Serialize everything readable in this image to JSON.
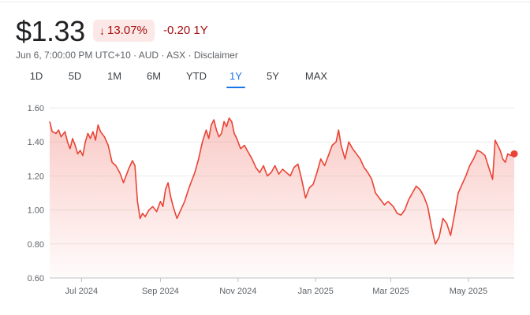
{
  "quote": {
    "price": "$1.33",
    "change_pct": "13.07%",
    "change_abs": "-0.20 1Y",
    "meta": {
      "date": "Jun 6, 7:00:00 PM UTC+10",
      "currency": "AUD",
      "exchange": "ASX",
      "disclaimer": "Disclaimer"
    }
  },
  "icons": {
    "change_arrow": "arrow-down-icon"
  },
  "colors": {
    "negative": "#a50e0e",
    "negative_bg": "#fce8e6",
    "line": "#ea4335",
    "accent": "#1a73e8"
  },
  "range_tabs": [
    {
      "label": "1D"
    },
    {
      "label": "5D"
    },
    {
      "label": "1M"
    },
    {
      "label": "6M"
    },
    {
      "label": "YTD"
    },
    {
      "label": "1Y",
      "active": true
    },
    {
      "label": "5Y"
    },
    {
      "label": "MAX"
    }
  ],
  "chart_data": {
    "type": "area",
    "ylim": [
      0.6,
      1.6
    ],
    "yticks": [
      "1.60",
      "1.40",
      "1.20",
      "1.00",
      "0.80",
      "0.60"
    ],
    "xlim": [
      "2024-06-06",
      "2025-06-06"
    ],
    "xticks": [
      {
        "date": "2024-07-01",
        "label": "Jul 2024"
      },
      {
        "date": "2024-09-01",
        "label": "Sep 2024"
      },
      {
        "date": "2024-11-01",
        "label": "Nov 2024"
      },
      {
        "date": "2025-01-01",
        "label": "Jan 2025"
      },
      {
        "date": "2025-03-01",
        "label": "Mar 2025"
      },
      {
        "date": "2025-05-01",
        "label": "May 2025"
      }
    ],
    "grid": true,
    "series": [
      {
        "points": [
          [
            "2024-06-06",
            1.52
          ],
          [
            "2024-06-08",
            1.46
          ],
          [
            "2024-06-11",
            1.45
          ],
          [
            "2024-06-13",
            1.47
          ],
          [
            "2024-06-15",
            1.43
          ],
          [
            "2024-06-18",
            1.46
          ],
          [
            "2024-06-20",
            1.4
          ],
          [
            "2024-06-22",
            1.36
          ],
          [
            "2024-06-24",
            1.42
          ],
          [
            "2024-06-26",
            1.38
          ],
          [
            "2024-06-28",
            1.33
          ],
          [
            "2024-06-30",
            1.35
          ],
          [
            "2024-07-02",
            1.32
          ],
          [
            "2024-07-04",
            1.4
          ],
          [
            "2024-07-06",
            1.45
          ],
          [
            "2024-07-08",
            1.42
          ],
          [
            "2024-07-10",
            1.46
          ],
          [
            "2024-07-12",
            1.41
          ],
          [
            "2024-07-14",
            1.5
          ],
          [
            "2024-07-16",
            1.46
          ],
          [
            "2024-07-19",
            1.43
          ],
          [
            "2024-07-22",
            1.38
          ],
          [
            "2024-07-25",
            1.28
          ],
          [
            "2024-07-28",
            1.26
          ],
          [
            "2024-07-31",
            1.22
          ],
          [
            "2024-08-03",
            1.16
          ],
          [
            "2024-08-05",
            1.2
          ],
          [
            "2024-08-07",
            1.24
          ],
          [
            "2024-08-10",
            1.29
          ],
          [
            "2024-08-12",
            1.26
          ],
          [
            "2024-08-14",
            1.05
          ],
          [
            "2024-08-16",
            0.95
          ],
          [
            "2024-08-18",
            0.98
          ],
          [
            "2024-08-20",
            0.96
          ],
          [
            "2024-08-23",
            1.0
          ],
          [
            "2024-08-26",
            1.02
          ],
          [
            "2024-08-29",
            0.99
          ],
          [
            "2024-09-01",
            1.05
          ],
          [
            "2024-09-03",
            1.02
          ],
          [
            "2024-09-05",
            1.12
          ],
          [
            "2024-09-07",
            1.16
          ],
          [
            "2024-09-09",
            1.08
          ],
          [
            "2024-09-11",
            1.02
          ],
          [
            "2024-09-14",
            0.95
          ],
          [
            "2024-09-17",
            1.0
          ],
          [
            "2024-09-20",
            1.05
          ],
          [
            "2024-09-23",
            1.12
          ],
          [
            "2024-09-25",
            1.16
          ],
          [
            "2024-09-28",
            1.22
          ],
          [
            "2024-10-01",
            1.3
          ],
          [
            "2024-10-04",
            1.4
          ],
          [
            "2024-10-07",
            1.47
          ],
          [
            "2024-10-09",
            1.42
          ],
          [
            "2024-10-11",
            1.5
          ],
          [
            "2024-10-13",
            1.53
          ],
          [
            "2024-10-15",
            1.47
          ],
          [
            "2024-10-17",
            1.43
          ],
          [
            "2024-10-19",
            1.45
          ],
          [
            "2024-10-21",
            1.52
          ],
          [
            "2024-10-23",
            1.49
          ],
          [
            "2024-10-25",
            1.54
          ],
          [
            "2024-10-27",
            1.52
          ],
          [
            "2024-10-29",
            1.45
          ],
          [
            "2024-10-31",
            1.42
          ],
          [
            "2024-11-03",
            1.36
          ],
          [
            "2024-11-06",
            1.38
          ],
          [
            "2024-11-09",
            1.34
          ],
          [
            "2024-11-12",
            1.3
          ],
          [
            "2024-11-15",
            1.25
          ],
          [
            "2024-11-18",
            1.22
          ],
          [
            "2024-11-21",
            1.26
          ],
          [
            "2024-11-24",
            1.2
          ],
          [
            "2024-11-27",
            1.22
          ],
          [
            "2024-11-30",
            1.26
          ],
          [
            "2024-12-03",
            1.21
          ],
          [
            "2024-12-06",
            1.24
          ],
          [
            "2024-12-09",
            1.22
          ],
          [
            "2024-12-12",
            1.2
          ],
          [
            "2024-12-15",
            1.25
          ],
          [
            "2024-12-18",
            1.27
          ],
          [
            "2024-12-21",
            1.18
          ],
          [
            "2024-12-24",
            1.07
          ],
          [
            "2024-12-27",
            1.13
          ],
          [
            "2024-12-30",
            1.15
          ],
          [
            "2025-01-02",
            1.22
          ],
          [
            "2025-01-05",
            1.3
          ],
          [
            "2025-01-08",
            1.26
          ],
          [
            "2025-01-11",
            1.32
          ],
          [
            "2025-01-14",
            1.38
          ],
          [
            "2025-01-17",
            1.4
          ],
          [
            "2025-01-19",
            1.47
          ],
          [
            "2025-01-21",
            1.38
          ],
          [
            "2025-01-24",
            1.3
          ],
          [
            "2025-01-27",
            1.4
          ],
          [
            "2025-01-30",
            1.36
          ],
          [
            "2025-02-02",
            1.33
          ],
          [
            "2025-02-05",
            1.3
          ],
          [
            "2025-02-08",
            1.25
          ],
          [
            "2025-02-11",
            1.22
          ],
          [
            "2025-02-14",
            1.18
          ],
          [
            "2025-02-17",
            1.1
          ],
          [
            "2025-02-20",
            1.07
          ],
          [
            "2025-02-24",
            1.03
          ],
          [
            "2025-02-27",
            1.05
          ],
          [
            "2025-03-03",
            1.02
          ],
          [
            "2025-03-06",
            0.98
          ],
          [
            "2025-03-09",
            0.97
          ],
          [
            "2025-03-12",
            1.0
          ],
          [
            "2025-03-15",
            1.06
          ],
          [
            "2025-03-18",
            1.1
          ],
          [
            "2025-03-21",
            1.14
          ],
          [
            "2025-03-24",
            1.12
          ],
          [
            "2025-03-27",
            1.08
          ],
          [
            "2025-03-30",
            1.02
          ],
          [
            "2025-04-02",
            0.9
          ],
          [
            "2025-04-05",
            0.8
          ],
          [
            "2025-04-08",
            0.84
          ],
          [
            "2025-04-11",
            0.95
          ],
          [
            "2025-04-14",
            0.92
          ],
          [
            "2025-04-17",
            0.85
          ],
          [
            "2025-04-20",
            0.97
          ],
          [
            "2025-04-23",
            1.1
          ],
          [
            "2025-04-26",
            1.15
          ],
          [
            "2025-04-29",
            1.2
          ],
          [
            "2025-05-02",
            1.26
          ],
          [
            "2025-05-05",
            1.3
          ],
          [
            "2025-05-08",
            1.35
          ],
          [
            "2025-05-11",
            1.34
          ],
          [
            "2025-05-14",
            1.32
          ],
          [
            "2025-05-17",
            1.25
          ],
          [
            "2025-05-20",
            1.18
          ],
          [
            "2025-05-22",
            1.41
          ],
          [
            "2025-05-24",
            1.38
          ],
          [
            "2025-05-26",
            1.35
          ],
          [
            "2025-05-28",
            1.3
          ],
          [
            "2025-05-30",
            1.28
          ],
          [
            "2025-06-01",
            1.33
          ],
          [
            "2025-06-03",
            1.32
          ],
          [
            "2025-06-06",
            1.33
          ]
        ]
      }
    ]
  }
}
